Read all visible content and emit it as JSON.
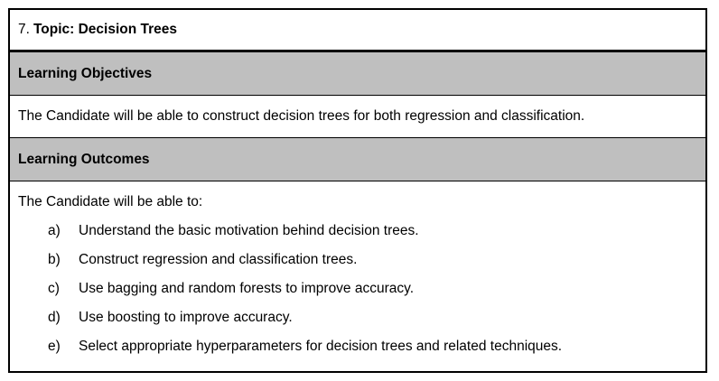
{
  "topic": {
    "number": "7.",
    "title": "Topic: Decision Trees"
  },
  "objectives": {
    "heading": "Learning Objectives",
    "text": "The Candidate will be able to construct decision trees for both regression and classification."
  },
  "outcomes": {
    "heading": "Learning Outcomes",
    "intro": "The Candidate will be able to:",
    "items": [
      {
        "marker": "a)",
        "text": "Understand the basic motivation behind decision trees."
      },
      {
        "marker": "b)",
        "text": "Construct regression and classification trees."
      },
      {
        "marker": "c)",
        "text": "Use bagging and random forests to improve accuracy."
      },
      {
        "marker": "d)",
        "text": "Use boosting to improve accuracy."
      },
      {
        "marker": "e)",
        "text": "Select appropriate hyperparameters for decision trees and related techniques."
      }
    ]
  },
  "colors": {
    "header_fill": "#bfbfbf",
    "border": "#000000"
  }
}
